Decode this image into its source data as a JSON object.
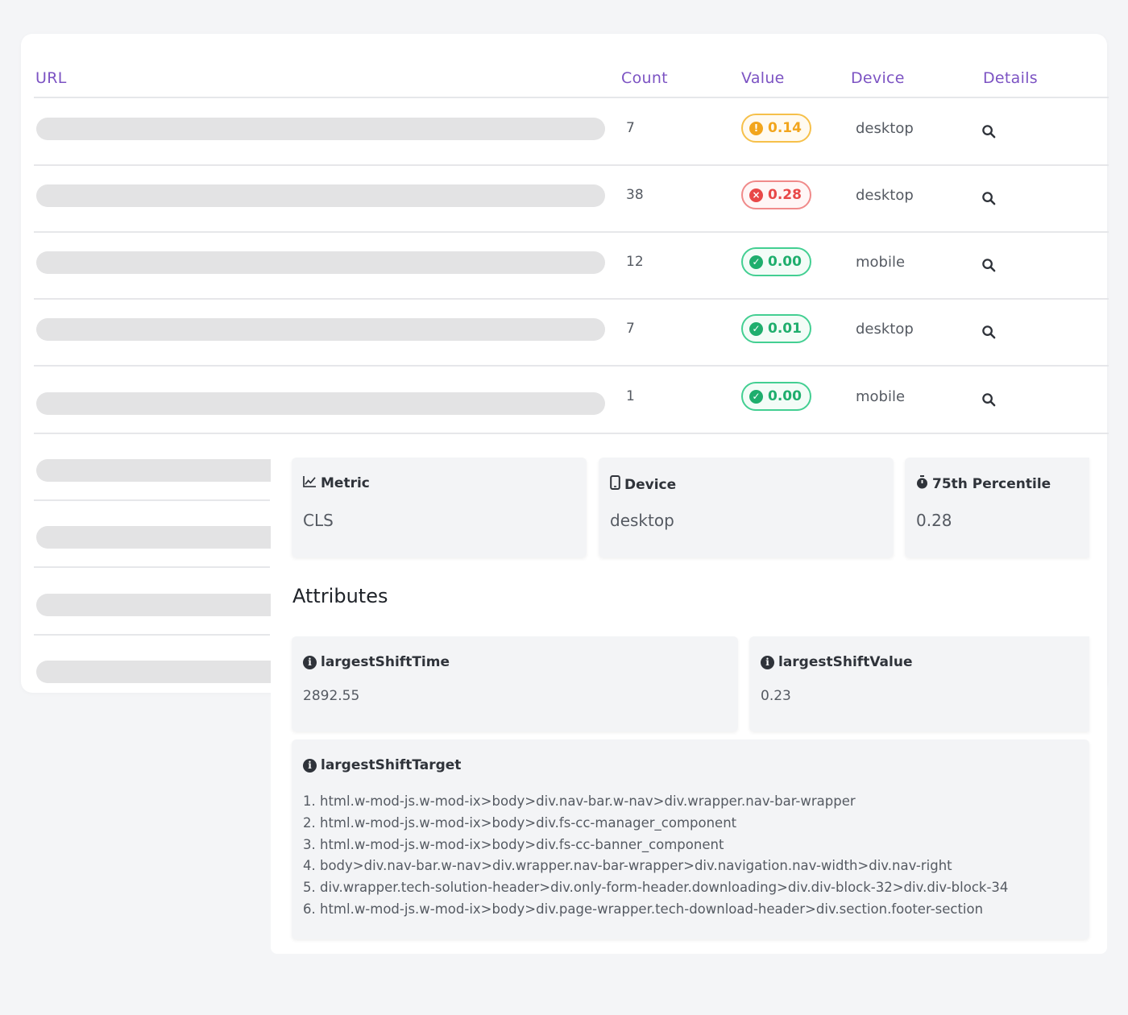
{
  "table": {
    "headers": {
      "url": "URL",
      "count": "Count",
      "value": "Value",
      "device": "Device",
      "details": "Details"
    },
    "rows": [
      {
        "count": "7",
        "value": "0.14",
        "status": "warning",
        "device": "desktop"
      },
      {
        "count": "38",
        "value": "0.28",
        "status": "poor",
        "device": "desktop"
      },
      {
        "count": "12",
        "value": "0.00",
        "status": "good",
        "device": "mobile"
      },
      {
        "count": "7",
        "value": "0.01",
        "status": "good",
        "device": "desktop"
      },
      {
        "count": "1",
        "value": "0.00",
        "status": "good",
        "device": "mobile"
      }
    ]
  },
  "details": {
    "metric": {
      "label": "Metric",
      "value": "CLS",
      "icon": "line-chart-icon"
    },
    "device": {
      "label": "Device",
      "value": "desktop",
      "icon": "mobile-device-icon"
    },
    "percentile": {
      "label": "75th Percentile",
      "value": "0.28",
      "icon": "stopwatch-icon"
    },
    "attributes_title": "Attributes",
    "largest_shift_time": {
      "label": "largestShiftTime",
      "value": "2892.55"
    },
    "largest_shift_value": {
      "label": "largestShiftValue",
      "value": "0.23"
    },
    "largest_shift_target": {
      "label": "largestShiftTarget",
      "items": [
        "1. html.w-mod-js.w-mod-ix>body>div.nav-bar.w-nav>div.wrapper.nav-bar-wrapper",
        "2. html.w-mod-js.w-mod-ix>body>div.fs-cc-manager_component",
        "3. html.w-mod-js.w-mod-ix>body>div.fs-cc-banner_component",
        "4. body>div.nav-bar.w-nav>div.wrapper.nav-bar-wrapper>div.navigation.nav-width>div.nav-right",
        "5. div.wrapper.tech-solution-header>div.only-form-header.downloading>div.div-block-32>div.div-block-34",
        "6. html.w-mod-js.w-mod-ix>body>div.page-wrapper.tech-download-header>div.section.footer-section"
      ]
    }
  },
  "colors": {
    "accent": "#7c53c3",
    "warning": "#f2a51c",
    "poor": "#e84848",
    "good": "#1fae6d"
  }
}
